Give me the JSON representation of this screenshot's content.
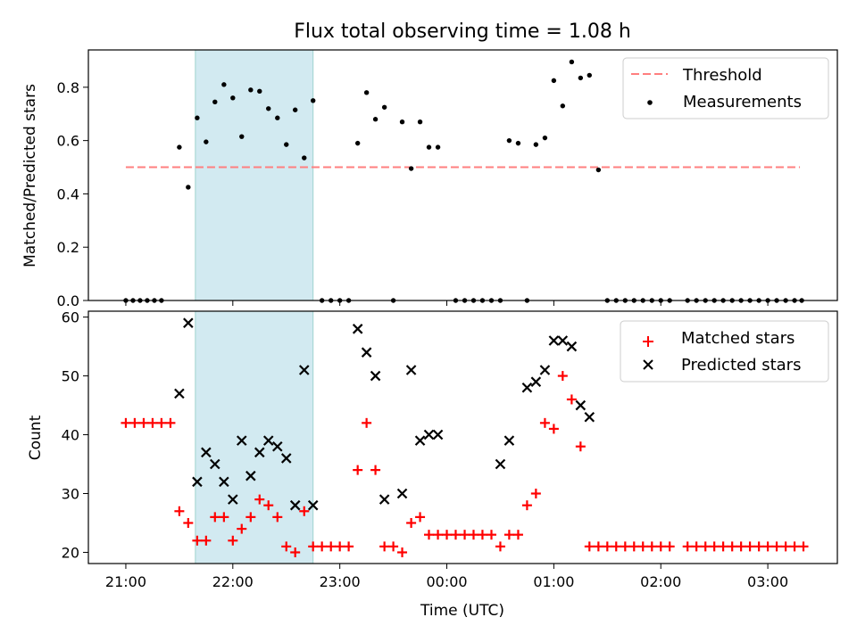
{
  "title": "Flux total observing time = 1.08 h",
  "x_tick_labels": [
    "21:00",
    "22:00",
    "23:00",
    "00:00",
    "01:00",
    "02:00",
    "03:00"
  ],
  "xlabel": "Time (UTC)",
  "colors": {
    "highlight": "#add8e6",
    "threshold": "#ff7f7f",
    "matched": "#ff0000",
    "predicted": "#000000",
    "measurement": "#000000"
  },
  "chart_data": [
    {
      "type": "scatter",
      "panel": "top",
      "ylabel": "Matched/Predicted stars",
      "y_tick_labels": [
        "0.0",
        "0.2",
        "0.4",
        "0.6",
        "0.8"
      ],
      "xlim_hours": [
        20.65,
        27.65
      ],
      "ylim": [
        0.0,
        0.94
      ],
      "highlight_span_hours": [
        21.65,
        22.75
      ],
      "threshold": {
        "name": "Threshold",
        "value": 0.5,
        "x_range_hours": [
          21.0,
          27.3
        ],
        "style": "dashed"
      },
      "legend": {
        "position": "top-right",
        "entries": [
          "Threshold",
          "Measurements"
        ]
      },
      "series": [
        {
          "name": "Measurements",
          "marker": "dot",
          "x_hours": [
            21.0,
            21.067,
            21.133,
            21.2,
            21.267,
            21.333,
            21.5,
            21.583,
            21.667,
            21.75,
            21.833,
            21.917,
            22.0,
            22.083,
            22.167,
            22.25,
            22.333,
            22.417,
            22.5,
            22.583,
            22.667,
            22.75,
            22.833,
            22.917,
            23.0,
            23.083,
            23.167,
            23.25,
            23.333,
            23.417,
            23.5,
            23.583,
            23.667,
            23.75,
            23.833,
            23.917,
            24.083,
            24.167,
            24.25,
            24.333,
            24.417,
            24.5,
            24.583,
            24.667,
            24.75,
            24.833,
            24.917,
            25.0,
            25.083,
            25.167,
            25.25,
            25.333,
            25.417,
            25.5,
            25.583,
            25.667,
            25.75,
            25.833,
            25.917,
            26.0,
            26.083,
            26.25,
            26.333,
            26.417,
            26.5,
            26.583,
            26.667,
            26.75,
            26.833,
            26.917,
            27.0,
            27.083,
            27.167,
            27.25,
            27.317
          ],
          "y": [
            0,
            0,
            0,
            0,
            0,
            0,
            0.575,
            0.425,
            0.685,
            0.595,
            0.745,
            0.81,
            0.76,
            0.615,
            0.79,
            0.785,
            0.72,
            0.685,
            0.585,
            0.715,
            0.535,
            0.75,
            0,
            0,
            0,
            0,
            0.59,
            0.78,
            0.68,
            0.725,
            0,
            0.67,
            0.495,
            0.67,
            0.575,
            0.575,
            0,
            0,
            0,
            0,
            0,
            0,
            0.6,
            0.59,
            0,
            0.585,
            0.61,
            0.825,
            0.73,
            0.895,
            0.835,
            0.845,
            0.49,
            0,
            0,
            0,
            0,
            0,
            0,
            0,
            0,
            0,
            0,
            0,
            0,
            0,
            0,
            0,
            0,
            0,
            0,
            0,
            0,
            0,
            0
          ]
        }
      ]
    },
    {
      "type": "scatter",
      "panel": "bottom",
      "ylabel": "Count",
      "y_tick_labels": [
        "20",
        "30",
        "40",
        "50",
        "60"
      ],
      "xlim_hours": [
        20.65,
        27.65
      ],
      "ylim": [
        18.1,
        61.0
      ],
      "highlight_span_hours": [
        21.65,
        22.75
      ],
      "legend": {
        "position": "top-right",
        "entries": [
          "Matched stars",
          "Predicted stars"
        ]
      },
      "series": [
        {
          "name": "Matched stars",
          "marker": "plus",
          "x_hours": [
            21.0,
            21.083,
            21.167,
            21.25,
            21.333,
            21.417,
            21.5,
            21.583,
            21.667,
            21.75,
            21.833,
            21.917,
            22.0,
            22.083,
            22.167,
            22.25,
            22.333,
            22.417,
            22.5,
            22.583,
            22.667,
            22.75,
            22.833,
            22.917,
            23.0,
            23.083,
            23.167,
            23.25,
            23.333,
            23.417,
            23.5,
            23.583,
            23.667,
            23.75,
            23.833,
            23.917,
            24.0,
            24.083,
            24.167,
            24.25,
            24.333,
            24.417,
            24.5,
            24.583,
            24.667,
            24.75,
            24.833,
            24.917,
            25.0,
            25.083,
            25.167,
            25.25,
            25.333,
            25.417,
            25.5,
            25.583,
            25.667,
            25.75,
            25.833,
            25.917,
            26.0,
            26.083,
            26.25,
            26.333,
            26.417,
            26.5,
            26.583,
            26.667,
            26.75,
            26.833,
            26.917,
            27.0,
            27.083,
            27.167,
            27.25,
            27.333
          ],
          "y": [
            42,
            42,
            42,
            42,
            42,
            42,
            27,
            25,
            22,
            22,
            26,
            26,
            22,
            24,
            26,
            29,
            28,
            26,
            21,
            20,
            27,
            21,
            21,
            21,
            21,
            21,
            34,
            42,
            34,
            21,
            21,
            20,
            25,
            26,
            23,
            23,
            23,
            23,
            23,
            23,
            23,
            23,
            21,
            23,
            23,
            28,
            30,
            42,
            41,
            50,
            46,
            38,
            21,
            21,
            21,
            21,
            21,
            21,
            21,
            21,
            21,
            21,
            21,
            21,
            21,
            21,
            21,
            21,
            21,
            21,
            21,
            21,
            21,
            21,
            21,
            21
          ]
        },
        {
          "name": "Predicted stars",
          "marker": "x",
          "x_hours": [
            21.5,
            21.583,
            21.667,
            21.75,
            21.833,
            21.917,
            22.0,
            22.083,
            22.167,
            22.25,
            22.333,
            22.417,
            22.5,
            22.583,
            22.667,
            22.75,
            23.167,
            23.25,
            23.333,
            23.417,
            23.583,
            23.667,
            23.75,
            23.833,
            23.917,
            24.5,
            24.583,
            24.75,
            24.833,
            24.917,
            25.0,
            25.083,
            25.167,
            25.25,
            25.333
          ],
          "y": [
            47,
            59,
            32,
            37,
            35,
            32,
            29,
            39,
            33,
            37,
            39,
            38,
            36,
            28,
            51,
            28,
            58,
            54,
            50,
            29,
            30,
            51,
            39,
            40,
            40,
            35,
            39,
            48,
            49,
            51,
            56,
            56,
            55,
            45,
            43
          ]
        }
      ]
    }
  ]
}
